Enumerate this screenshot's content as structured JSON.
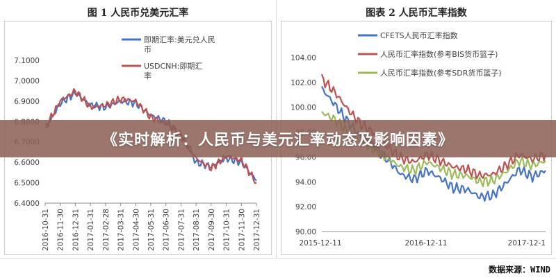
{
  "banner_title": "《实时解析：人民币与美元汇率动态及影响因素》",
  "source": "数据来源：WIND",
  "colors": {
    "blue": "#4472c4",
    "red": "#c0504d",
    "green": "#9bbb59",
    "banner": "#8c5f55"
  },
  "chart_data": [
    {
      "type": "line",
      "title": "图 1 人民币兑美元汇率",
      "ylim": [
        6.4,
        7.1
      ],
      "y_ticks": [
        "6.4000",
        "6.5000",
        "6.6000",
        "6.7000",
        "6.8000",
        "6.9000",
        "7.0000",
        "7.1000"
      ],
      "x": [
        "2016-10-31",
        "2016-11-30",
        "2016-12-31",
        "2017-01-31",
        "2017-02-28",
        "2017-03-31",
        "2017-04-30",
        "2017-05-31",
        "2017-06-30",
        "2017-07-31",
        "2017-08-31",
        "2017-09-30",
        "2017-10-31",
        "2017-11-30",
        "2017-12-31"
      ],
      "series": [
        {
          "name": "即期汇率:美元兑人民币",
          "color": "#4472c4",
          "values": [
            6.76,
            6.89,
            6.94,
            6.88,
            6.87,
            6.9,
            6.89,
            6.83,
            6.8,
            6.74,
            6.6,
            6.58,
            6.62,
            6.6,
            6.51
          ]
        },
        {
          "name": "USDCNH:即期汇率",
          "color": "#c0504d",
          "values": [
            6.77,
            6.9,
            6.95,
            6.87,
            6.88,
            6.91,
            6.9,
            6.82,
            6.79,
            6.73,
            6.62,
            6.57,
            6.63,
            6.61,
            6.5
          ]
        }
      ]
    },
    {
      "type": "line",
      "title": "图表 2 人民币汇率指数",
      "ylim": [
        90,
        104
      ],
      "y_ticks": [
        "90.00",
        "92.00",
        "94.00",
        "96.00",
        "98.00",
        "100.00",
        "102.00",
        "104.00"
      ],
      "x_ticks": [
        "2015-12-11",
        "2016-12-11",
        "2017-12-1"
      ],
      "series": [
        {
          "name": "CFETS人民币汇率指数",
          "color": "#4472c4",
          "values": [
            101.5,
            100.2,
            98.8,
            97.6,
            96.9,
            95.8,
            94.6,
            94.2,
            94.9,
            94.3,
            93.5,
            93.4,
            92.8,
            92.9,
            93.9,
            95.0,
            94.4,
            94.9
          ]
        },
        {
          "name": "人民币汇率指数(参考BIS货币篮子)",
          "color": "#c0504d",
          "values": [
            102.3,
            101.2,
            99.8,
            98.6,
            97.9,
            96.8,
            95.9,
            95.6,
            96.2,
            95.7,
            95.2,
            95.0,
            94.5,
            94.6,
            95.3,
            96.2,
            95.8,
            96.2
          ]
        },
        {
          "name": "人民币汇率指数(参考SDR货币篮子)",
          "color": "#9bbb59",
          "values": [
            99.6,
            99.0,
            98.0,
            97.2,
            96.6,
            95.9,
            95.2,
            94.9,
            95.6,
            95.1,
            94.6,
            94.5,
            94.0,
            94.1,
            94.8,
            95.7,
            95.3,
            95.7
          ]
        }
      ]
    }
  ]
}
